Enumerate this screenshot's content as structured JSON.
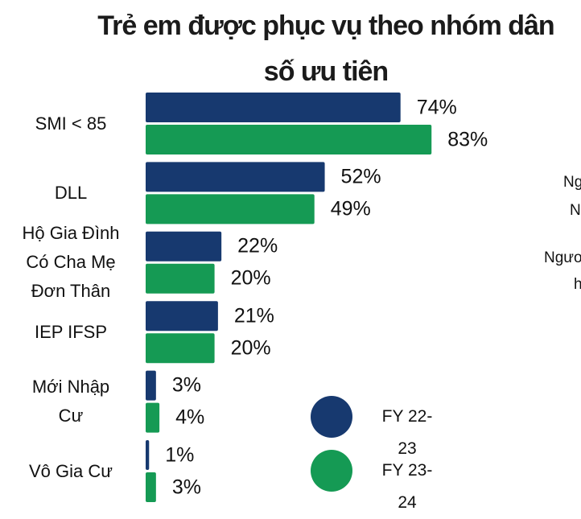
{
  "chart_data": {
    "type": "barh",
    "title": "Trẻ em được phục vụ theo nhóm dân số ưu tiên",
    "categories": [
      "SMI < 85",
      "DLL",
      "Hộ Gia Đình\nCó Cha Mẹ\nĐơn Thân",
      "IEP IFSP",
      "Mới Nhập\nCư",
      "Vô Gia Cư"
    ],
    "series": [
      {
        "name": "FY 22-23",
        "color": "#17396f",
        "values": [
          74,
          52,
          22,
          21,
          3,
          1
        ],
        "value_labels": [
          "74%",
          "52%",
          "22%",
          "21%",
          "3%",
          "1%"
        ]
      },
      {
        "name": "FY 23-24",
        "color": "#159a54",
        "values": [
          83,
          49,
          20,
          20,
          4,
          3
        ],
        "value_labels": [
          "83%",
          "49%",
          "20%",
          "20%",
          "4%",
          "3%"
        ]
      }
    ],
    "xlim": [
      0,
      100
    ]
  },
  "side_text": [
    "Ng",
    "N",
    "Ngươ",
    "h"
  ]
}
